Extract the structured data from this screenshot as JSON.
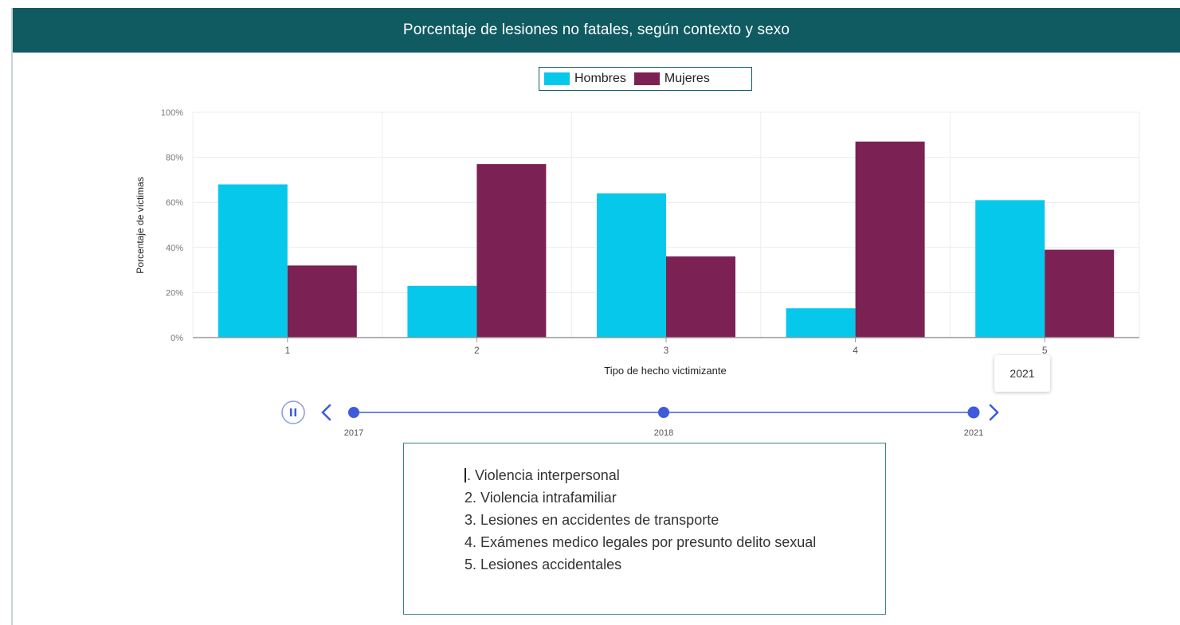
{
  "header": {
    "title": "Porcentaje de lesiones no fatales, según contexto y sexo"
  },
  "colors": {
    "hombres": "#06c8ea",
    "mujeres": "#7b2154",
    "header": "#0f5b61",
    "timeline": "#3d5bdb"
  },
  "chart_data": {
    "type": "bar",
    "title": "Porcentaje de lesiones no fatales, según contexto y sexo",
    "xlabel": "Tipo de hecho victimizante",
    "ylabel": "Porcentaje de víctimas",
    "categories": [
      "1",
      "2",
      "3",
      "4",
      "5"
    ],
    "series": [
      {
        "name": "Hombres",
        "values": [
          68,
          23,
          64,
          13,
          61
        ]
      },
      {
        "name": "Mujeres",
        "values": [
          32,
          77,
          36,
          87,
          39
        ]
      }
    ],
    "ylim": [
      0,
      100
    ],
    "yticks": [
      "0%",
      "20%",
      "40%",
      "60%",
      "80%",
      "100%"
    ],
    "grid": true,
    "legend": "top-center"
  },
  "timeline": {
    "play_icon": "pause-icon",
    "prev_icon": "chevron-left-icon",
    "next_icon": "chevron-right-icon",
    "points": [
      "2017",
      "2018",
      "2021"
    ],
    "tooltip": "2021"
  },
  "notes": {
    "items": [
      "1. Violencia interpersonal",
      "2. Violencia intrafamiliar",
      "3. Lesiones en accidentes de transporte",
      "4. Exámenes medico legales por presunto delito sexual",
      "5. Lesiones accidentales"
    ]
  }
}
